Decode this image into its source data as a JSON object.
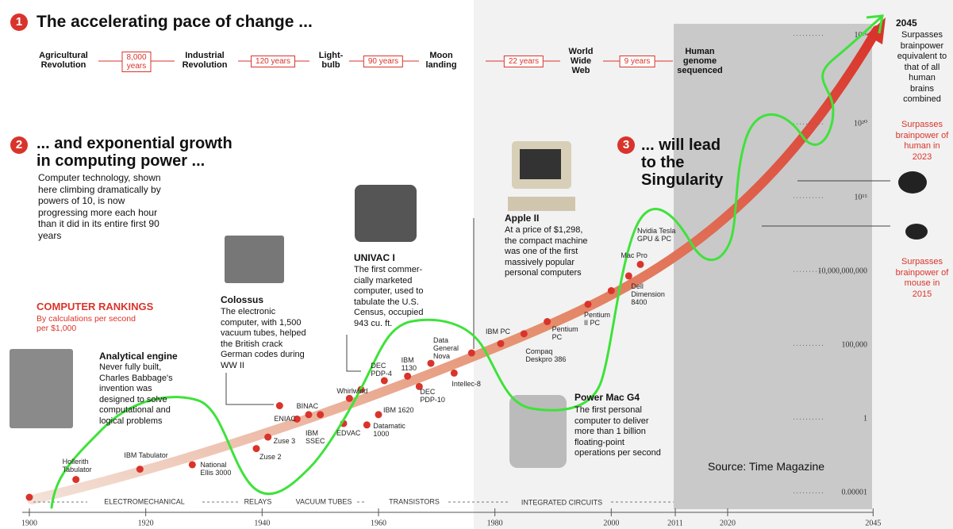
{
  "section1": {
    "number": "1",
    "title": "The accelerating pace of change ...",
    "timeline": [
      "Agricultural\nRevolution",
      "8,000\nyears",
      "Industrial\nRevolution",
      "120 years",
      "Light-\nbulb",
      "90 years",
      "Moon\nlanding",
      "22 years",
      "World\nWide\nWeb",
      "9 years",
      "Human\ngenome\nsequenced"
    ]
  },
  "section2": {
    "number": "2",
    "title": "... and exponential growth\nin computing power ...",
    "text": "Computer technology, shown here climbing dramatically by powers of 10, is now progressing more each hour than it did in its entire first 90 years"
  },
  "section3": {
    "number": "3",
    "title": "... will lead\nto the\nSingularity"
  },
  "annotations": [
    {
      "title": "Analytical engine",
      "text": "Never fully built, Charles Babbage's invention was designed to solve computational and logical problems"
    },
    {
      "title": "Colossus",
      "text": "The electronic computer, with 1,500 vacuum tubes, helped the British crack German codes during WW II"
    },
    {
      "title": "UNIVAC I",
      "text": "The first commer-cially marketed computer, used to tabulate the U.S. Census, occupied 943 cu. ft."
    },
    {
      "title": "Apple II",
      "text": "At a price of $1,298, the compact machine was one of the first massively popular personal computers"
    },
    {
      "title": "Power Mac G4",
      "text": "The first personal computer to deliver more than 1 billion floating-point operations per second"
    }
  ],
  "milestones": {
    "year": "2045",
    "singularity": "Surpasses brainpower equivalent to that of all human brains combined",
    "human": "Surpasses brainpower of human in 2023",
    "mouse": "Surpasses brainpower of mouse in 2015"
  },
  "source": "Source: Time Magazine",
  "chart_data": {
    "type": "scatter",
    "title": "COMPUTER RANKINGS",
    "subtitle": "By calculations per second\nper $1,000",
    "log_y": true,
    "color": "#d9342b",
    "xlim": [
      1897,
      2047
    ],
    "xticks": [
      1900,
      1920,
      1940,
      1960,
      1980,
      2000,
      2011,
      2020,
      2045
    ],
    "ylim": [
      1e-06,
      1e+27
    ],
    "yticks": [
      1e-05,
      1,
      {
        "value": 100000,
        "label": "100,000"
      },
      {
        "value": 10000000000,
        "label": "10,000,000,000"
      },
      {
        "value": 1000000000000000.0,
        "label": "10¹⁵"
      },
      {
        "value": 1e+20,
        "label": "10²⁰"
      },
      {
        "value": 1e+26,
        "label": "10²⁶"
      }
    ],
    "eras": [
      "ELECTROMECHANICAL",
      "RELAYS",
      "VACUUM TUBES",
      "TRANSISTORS",
      "INTEGRATED CIRCUITS"
    ],
    "series": [
      {
        "labels": [
          null,
          "Hollerith\nTabulator",
          "IBM Tabulator",
          "National\nEllis 3000",
          "Zuse 2",
          "Zuse 3",
          null,
          "ENIAC",
          "IBM\nSSEC",
          "BINAC",
          "EDVAC",
          "Whirlwind",
          null,
          "Datamatic\n1000",
          "IBM 1620",
          "DEC\nPDP-4",
          "IBM\n1130",
          "DEC\nPDP-10",
          "Data\nGeneral\nNova",
          "Intellec-8",
          null,
          "IBM PC",
          "Compaq\nDeskpro 386",
          "Pentium\nPC",
          "Pentium\nII PC",
          "Dell\nDimension\n8400",
          "Mac Pro",
          "Nvidia Tesla\nGPU & PC"
        ],
        "x": [
          1900,
          1908,
          1919,
          1928,
          1939,
          1941,
          1943,
          1946,
          1948,
          1950,
          1954,
          1955,
          1957,
          1958,
          1960,
          1961,
          1965,
          1967,
          1969,
          1973,
          1976,
          1981,
          1985,
          1989,
          1996,
          2000,
          2003,
          2005
        ],
        "values": [
          5e-06,
          8e-05,
          0.0004,
          0.0008,
          0.01,
          0.06,
          8,
          1,
          2,
          2,
          0.5,
          25,
          100,
          0.4,
          2,
          400,
          800,
          160,
          6000,
          1300,
          30000,
          130000,
          600000,
          4000000,
          60000000,
          500000000,
          5000000000,
          30000000000
        ]
      }
    ]
  }
}
